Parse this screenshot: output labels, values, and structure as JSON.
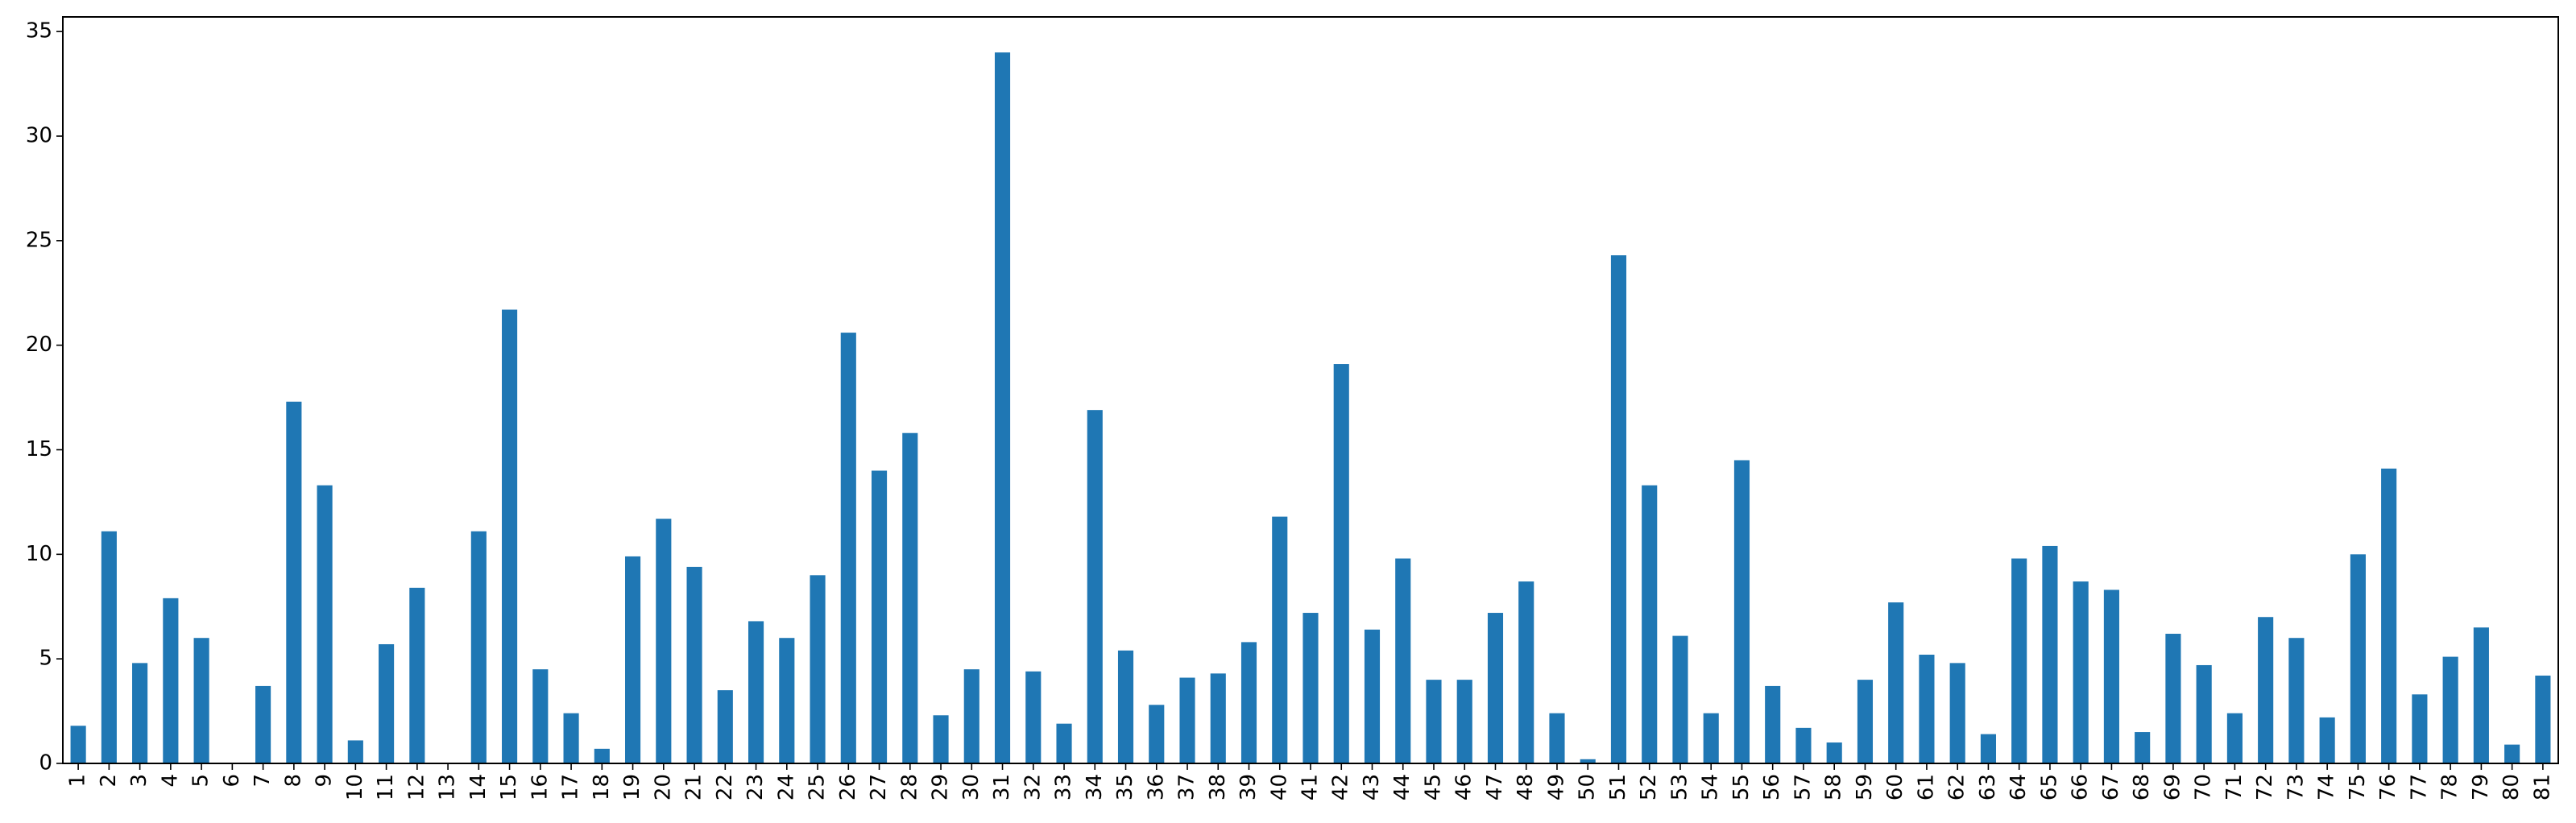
{
  "chart_data": {
    "type": "bar",
    "title": "",
    "xlabel": "",
    "ylabel": "",
    "ylim": [
      0,
      35.7
    ],
    "yticks": [
      0,
      5,
      10,
      15,
      20,
      25,
      30,
      35
    ],
    "grid": false,
    "legend": "none",
    "bar_color": "#1f77b4",
    "categories": [
      "1",
      "2",
      "3",
      "4",
      "5",
      "6",
      "7",
      "8",
      "9",
      "10",
      "11",
      "12",
      "13",
      "14",
      "15",
      "16",
      "17",
      "18",
      "19",
      "20",
      "21",
      "22",
      "23",
      "24",
      "25",
      "26",
      "27",
      "28",
      "29",
      "30",
      "31",
      "32",
      "33",
      "34",
      "35",
      "36",
      "37",
      "38",
      "39",
      "40",
      "41",
      "42",
      "43",
      "44",
      "45",
      "46",
      "47",
      "48",
      "49",
      "50",
      "51",
      "52",
      "53",
      "54",
      "55",
      "56",
      "57",
      "58",
      "59",
      "60",
      "61",
      "62",
      "63",
      "64",
      "65",
      "66",
      "67",
      "68",
      "69",
      "70",
      "71",
      "72",
      "73",
      "74",
      "75",
      "76",
      "77",
      "78",
      "79",
      "80",
      "81"
    ],
    "values": [
      1.8,
      11.1,
      4.8,
      7.9,
      6.0,
      0,
      3.7,
      17.3,
      13.3,
      1.1,
      5.7,
      8.4,
      0,
      11.1,
      21.7,
      4.5,
      2.4,
      0.7,
      9.9,
      11.7,
      9.4,
      3.5,
      6.8,
      6.0,
      9.0,
      20.6,
      14.0,
      15.8,
      2.3,
      4.5,
      34.0,
      4.4,
      1.9,
      16.9,
      5.4,
      2.8,
      4.1,
      4.3,
      5.8,
      11.8,
      7.2,
      19.1,
      6.4,
      9.8,
      4.0,
      4.0,
      7.2,
      8.7,
      2.4,
      0.2,
      24.3,
      13.3,
      6.1,
      2.4,
      14.5,
      3.7,
      1.7,
      1.0,
      4.0,
      7.7,
      5.2,
      4.8,
      1.4,
      9.8,
      10.4,
      8.7,
      8.3,
      1.5,
      6.2,
      4.7,
      2.4,
      7.0,
      6.0,
      2.2,
      10.0,
      14.1,
      3.3,
      5.1,
      6.5,
      0.9,
      4.2
    ]
  }
}
